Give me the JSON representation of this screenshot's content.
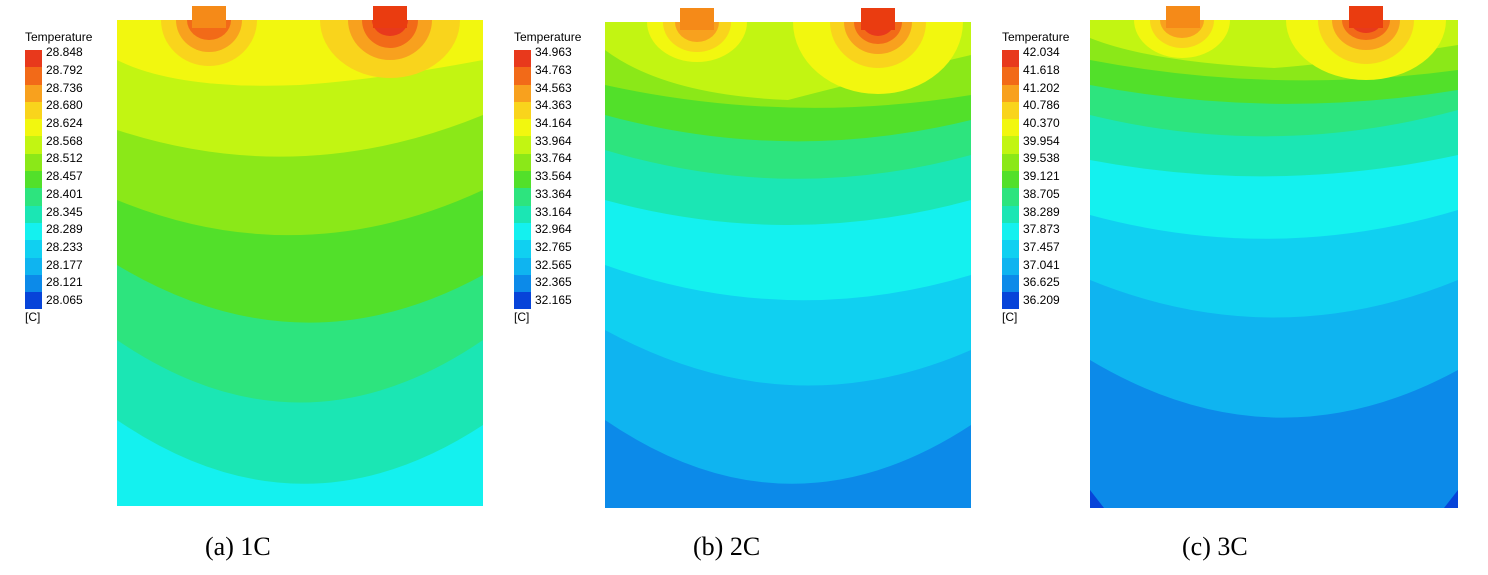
{
  "panels": [
    {
      "legend_title": "Temperature",
      "unit": "[C]",
      "ticks": [
        "28.848",
        "28.792",
        "28.736",
        "28.680",
        "28.624",
        "28.568",
        "28.512",
        "28.457",
        "28.401",
        "28.345",
        "28.289",
        "28.233",
        "28.177",
        "28.121",
        "28.065"
      ],
      "caption": "(a) 1C"
    },
    {
      "legend_title": "Temperature",
      "unit": "[C]",
      "ticks": [
        "34.963",
        "34.763",
        "34.563",
        "34.363",
        "34.164",
        "33.964",
        "33.764",
        "33.564",
        "33.364",
        "33.164",
        "32.964",
        "32.765",
        "32.565",
        "32.365",
        "32.165"
      ],
      "caption": "(b) 2C"
    },
    {
      "legend_title": "Temperature",
      "unit": "[C]",
      "ticks": [
        "42.034",
        "41.618",
        "41.202",
        "40.786",
        "40.370",
        "39.954",
        "39.538",
        "39.121",
        "38.705",
        "38.289",
        "37.873",
        "37.457",
        "37.041",
        "36.625",
        "36.209"
      ],
      "caption": "(c) 3C"
    }
  ],
  "colors": [
    "#e8391c",
    "#f26a18",
    "#f8a11e",
    "#f9d41c",
    "#f2f70f",
    "#c2f512",
    "#8be818",
    "#52e02a",
    "#2de47e",
    "#1be6b4",
    "#14f1ef",
    "#10d0f1",
    "#0fb4f0",
    "#0c8ae9",
    "#0744d9"
  ]
}
